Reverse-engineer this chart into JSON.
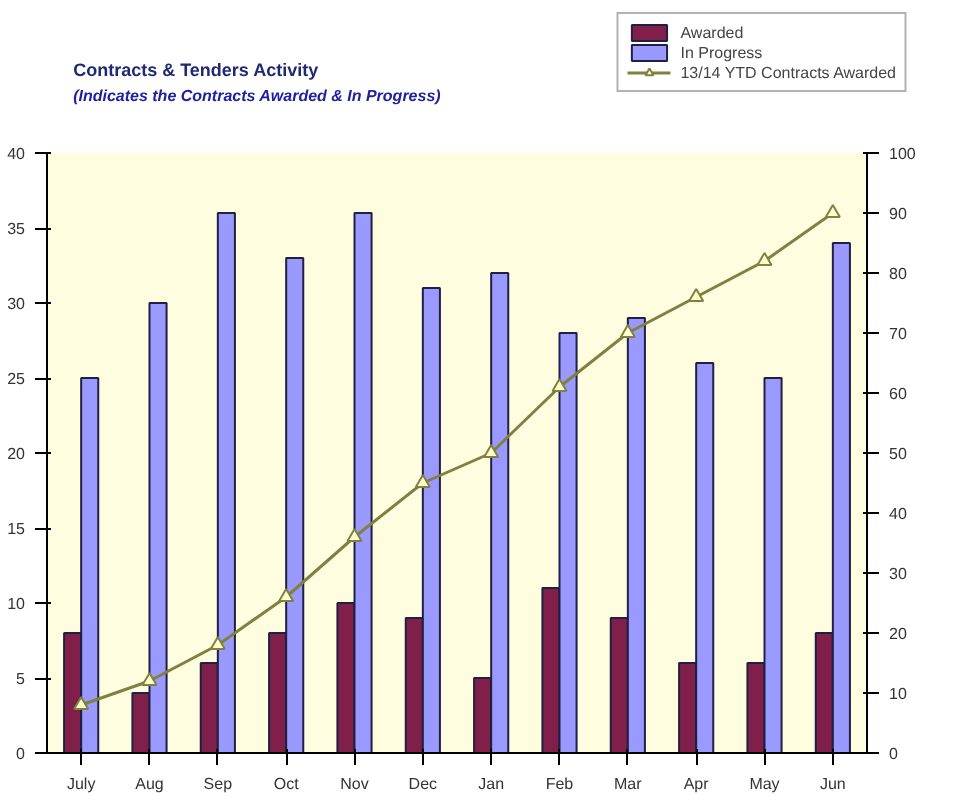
{
  "chart_data": {
    "type": "bar",
    "title": "Contracts & Tenders Activity",
    "subtitle": "(Indicates the Contracts Awarded & In Progress)",
    "categories": [
      "July",
      "Aug",
      "Sep",
      "Oct",
      "Nov",
      "Dec",
      "Jan",
      "Feb",
      "Mar",
      "Apr",
      "May",
      "Jun"
    ],
    "series": [
      {
        "name": "Awarded",
        "color": "#7f1f4a",
        "values": [
          8,
          4,
          6,
          8,
          10,
          9,
          5,
          11,
          9,
          6,
          6,
          8
        ]
      },
      {
        "name": "In Progress",
        "color": "#9999ff",
        "values": [
          25,
          30,
          36,
          33,
          36,
          31,
          32,
          28,
          29,
          26,
          25,
          34
        ]
      },
      {
        "name": "13/14 YTD Contracts Awarded",
        "type": "line",
        "axis": "y2",
        "color": "#808040",
        "marker": "triangle",
        "values": [
          8,
          12,
          18,
          26,
          36,
          45,
          50,
          61,
          70,
          76,
          82,
          90
        ]
      }
    ],
    "ylim": [
      0,
      40
    ],
    "yticks": [
      0,
      5,
      10,
      15,
      20,
      25,
      30,
      35,
      40
    ],
    "y2lim": [
      0,
      100
    ],
    "y2ticks": [
      0,
      10,
      20,
      30,
      40,
      50,
      60,
      70,
      80,
      90,
      100
    ],
    "grid": false,
    "legend": "top right"
  }
}
